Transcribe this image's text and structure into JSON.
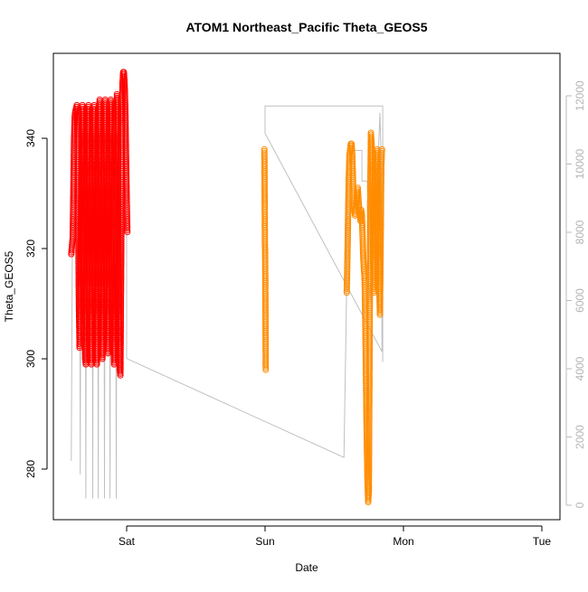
{
  "chart_data": {
    "type": "scatter",
    "title": "ATOM1 Northeast_Pacific Theta_GEOS5",
    "xlabel": "Date",
    "ylabel": "Theta_GEOS5",
    "x_ticks": [
      "Sat",
      "Sun",
      "Mon",
      "Tue"
    ],
    "y_ticks": [
      "280",
      "300",
      "320",
      "340"
    ],
    "y2_ticks": [
      "0",
      "2000",
      "4000",
      "6000",
      "8000",
      "10000",
      "12000"
    ],
    "ylim": [
      272,
      358
    ],
    "y2lim": [
      -300,
      12750
    ],
    "grid": false,
    "legend": "none",
    "colors": {
      "segment1": "#ff0000",
      "segment2": "#ff8c00",
      "altitude_line": "#c0c0c0"
    },
    "series": [
      {
        "color": "#ff0000",
        "points": [
          [
            -0.4,
            319
          ],
          [
            -0.39,
            322
          ],
          [
            -0.385,
            330
          ],
          [
            -0.38,
            340
          ],
          [
            -0.375,
            344
          ],
          [
            -0.37,
            345
          ],
          [
            -0.36,
            346
          ],
          [
            -0.355,
            340
          ],
          [
            -0.35,
            325
          ],
          [
            -0.345,
            310
          ],
          [
            -0.34,
            302
          ],
          [
            -0.335,
            310
          ],
          [
            -0.33,
            325
          ],
          [
            -0.325,
            340
          ],
          [
            -0.32,
            346
          ],
          [
            -0.315,
            344
          ],
          [
            -0.31,
            330
          ],
          [
            -0.305,
            315
          ],
          [
            -0.3,
            300
          ],
          [
            -0.295,
            299
          ],
          [
            -0.29,
            312
          ],
          [
            -0.285,
            330
          ],
          [
            -0.28,
            345
          ],
          [
            -0.275,
            346
          ],
          [
            -0.27,
            335
          ],
          [
            -0.265,
            318
          ],
          [
            -0.26,
            303
          ],
          [
            -0.255,
            299
          ],
          [
            -0.25,
            310
          ],
          [
            -0.245,
            328
          ],
          [
            -0.24,
            343
          ],
          [
            -0.235,
            346
          ],
          [
            -0.23,
            338
          ],
          [
            -0.225,
            320
          ],
          [
            -0.22,
            305
          ],
          [
            -0.215,
            299
          ],
          [
            -0.21,
            308
          ],
          [
            -0.205,
            325
          ],
          [
            -0.2,
            342
          ],
          [
            -0.195,
            347
          ],
          [
            -0.19,
            340
          ],
          [
            -0.185,
            322
          ],
          [
            -0.18,
            306
          ],
          [
            -0.175,
            300
          ],
          [
            -0.17,
            307
          ],
          [
            -0.165,
            324
          ],
          [
            -0.16,
            341
          ],
          [
            -0.155,
            347
          ],
          [
            -0.15,
            340
          ],
          [
            -0.145,
            323
          ],
          [
            -0.14,
            308
          ],
          [
            -0.135,
            301
          ],
          [
            -0.13,
            306
          ],
          [
            -0.125,
            322
          ],
          [
            -0.12,
            340
          ],
          [
            -0.115,
            347
          ],
          [
            -0.11,
            344
          ],
          [
            -0.105,
            328
          ],
          [
            -0.1,
            312
          ],
          [
            -0.095,
            303
          ],
          [
            -0.09,
            299
          ],
          [
            -0.085,
            306
          ],
          [
            -0.08,
            322
          ],
          [
            -0.075,
            340
          ],
          [
            -0.07,
            348
          ],
          [
            -0.065,
            346
          ],
          [
            -0.06,
            330
          ],
          [
            -0.055,
            310
          ],
          [
            -0.05,
            298
          ],
          [
            -0.045,
            297
          ],
          [
            -0.04,
            315
          ],
          [
            -0.035,
            335
          ],
          [
            -0.03,
            350
          ],
          [
            -0.025,
            352
          ],
          [
            -0.02,
            352
          ],
          [
            -0.015,
            350
          ],
          [
            -0.01,
            346
          ],
          [
            -0.005,
            338
          ],
          [
            0.0,
            330
          ],
          [
            0.005,
            323
          ]
        ]
      },
      {
        "color": "#ff8c00",
        "points": [
          [
            0.995,
            338
          ],
          [
            0.996,
            336
          ],
          [
            0.997,
            330
          ],
          [
            0.998,
            325
          ],
          [
            0.999,
            321
          ],
          [
            1.0,
            320
          ],
          [
            1.001,
            318
          ],
          [
            1.002,
            314
          ],
          [
            1.003,
            308
          ],
          [
            1.004,
            302
          ],
          [
            1.005,
            298
          ],
          [
            1.59,
            312
          ],
          [
            1.595,
            318
          ],
          [
            1.6,
            326
          ],
          [
            1.605,
            333
          ],
          [
            1.61,
            337
          ],
          [
            1.615,
            338
          ],
          [
            1.62,
            339
          ],
          [
            1.625,
            339
          ],
          [
            1.63,
            337
          ],
          [
            1.635,
            333
          ],
          [
            1.64,
            329
          ],
          [
            1.645,
            327
          ],
          [
            1.65,
            326
          ],
          [
            1.655,
            327
          ],
          [
            1.66,
            328
          ],
          [
            1.665,
            330
          ],
          [
            1.67,
            331
          ],
          [
            1.675,
            329
          ],
          [
            1.68,
            327
          ],
          [
            1.685,
            326
          ],
          [
            1.69,
            325
          ],
          [
            1.695,
            327
          ],
          [
            1.7,
            326
          ],
          [
            1.705,
            322
          ],
          [
            1.71,
            318
          ],
          [
            1.715,
            316
          ],
          [
            1.72,
            314
          ],
          [
            1.725,
            305
          ],
          [
            1.73,
            295
          ],
          [
            1.735,
            285
          ],
          [
            1.74,
            278
          ],
          [
            1.745,
            274
          ],
          [
            1.75,
            276
          ],
          [
            1.755,
            300
          ],
          [
            1.76,
            330
          ],
          [
            1.765,
            341
          ],
          [
            1.77,
            339
          ],
          [
            1.775,
            330
          ],
          [
            1.78,
            320
          ],
          [
            1.785,
            312
          ],
          [
            1.79,
            315
          ],
          [
            1.795,
            325
          ],
          [
            1.8,
            333
          ],
          [
            1.805,
            337
          ],
          [
            1.81,
            338
          ],
          [
            1.815,
            334
          ],
          [
            1.82,
            325
          ],
          [
            1.825,
            315
          ],
          [
            1.83,
            308
          ],
          [
            1.835,
            320
          ],
          [
            1.84,
            335
          ],
          [
            1.845,
            338
          ]
        ]
      }
    ],
    "altitude_line": {
      "color": "#c0c0c0",
      "points": [
        [
          -0.4,
          1300
        ],
        [
          -0.39,
          9500
        ],
        [
          -0.38,
          10800
        ],
        [
          -0.34,
          10800
        ],
        [
          -0.335,
          900
        ],
        [
          -0.33,
          10500
        ],
        [
          -0.3,
          10700
        ],
        [
          -0.295,
          200
        ],
        [
          -0.29,
          10600
        ],
        [
          -0.25,
          10700
        ],
        [
          -0.245,
          200
        ],
        [
          -0.24,
          10700
        ],
        [
          -0.21,
          10700
        ],
        [
          -0.205,
          200
        ],
        [
          -0.2,
          10800
        ],
        [
          -0.165,
          10800
        ],
        [
          -0.16,
          200
        ],
        [
          -0.155,
          10800
        ],
        [
          -0.125,
          10800
        ],
        [
          -0.12,
          200
        ],
        [
          -0.115,
          10800
        ],
        [
          -0.08,
          10800
        ],
        [
          -0.075,
          200
        ],
        [
          -0.07,
          10800
        ],
        [
          -0.03,
          11300
        ],
        [
          0.0,
          11200
        ],
        [
          0.0,
          4300
        ],
        [
          1.57,
          1400
        ],
        [
          1.59,
          6500
        ],
        [
          1.6,
          10100
        ],
        [
          1.61,
          10100
        ],
        [
          1.62,
          10300
        ],
        [
          1.64,
          10400
        ],
        [
          1.7,
          10400
        ],
        [
          1.7,
          9500
        ],
        [
          1.74,
          9500
        ],
        [
          1.75,
          6500
        ],
        [
          1.76,
          6000
        ],
        [
          1.77,
          9000
        ],
        [
          1.78,
          10000
        ],
        [
          1.79,
          9600
        ],
        [
          1.8,
          7000
        ],
        [
          1.81,
          5800
        ],
        [
          1.82,
          10500
        ],
        [
          1.83,
          11500
        ],
        [
          1.84,
          10000
        ],
        [
          1.845,
          4500
        ],
        [
          1.0,
          10900
        ],
        [
          1.0,
          11700
        ],
        [
          1.85,
          11700
        ],
        [
          1.85,
          4200
        ]
      ]
    }
  }
}
